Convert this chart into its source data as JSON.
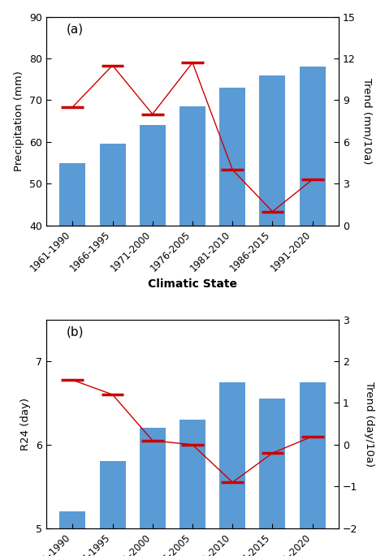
{
  "categories": [
    "1961-1990",
    "1966-1995",
    "1971-2000",
    "1976-2005",
    "1981-2010",
    "1986-2015",
    "1991-2020"
  ],
  "bar_color": "#5b9bd5",
  "line_color": "#cc0000",
  "panel_a": {
    "label": "(a)",
    "bar_values": [
      55.0,
      59.5,
      64.0,
      68.5,
      73.0,
      76.0,
      78.0
    ],
    "trend_values": [
      8.5,
      11.5,
      8.0,
      11.7,
      4.0,
      1.0,
      3.3
    ],
    "ylabel_left": "Precipitation (mm)",
    "ylabel_right": "Trend (mm/10a)",
    "ylim_left": [
      40,
      90
    ],
    "ylim_right": [
      0,
      15
    ],
    "yticks_left": [
      40,
      50,
      60,
      70,
      80,
      90
    ],
    "yticks_right": [
      0,
      3,
      6,
      9,
      12,
      15
    ]
  },
  "panel_b": {
    "label": "(b)",
    "bar_values": [
      5.2,
      5.8,
      6.2,
      6.3,
      6.75,
      6.55,
      6.75
    ],
    "trend_values": [
      1.55,
      1.2,
      0.1,
      0.0,
      -0.9,
      -0.2,
      0.2
    ],
    "ylabel_left": "R24 (day)",
    "ylabel_right": "Trend (day/10a)",
    "ylim_left": [
      5.0,
      7.5
    ],
    "ylim_right": [
      -2,
      3
    ],
    "yticks_left": [
      5,
      6,
      7
    ],
    "yticks_right": [
      -2,
      -1,
      0,
      1,
      2,
      3
    ]
  },
  "xlabel": "Climatic State",
  "figsize": [
    4.74,
    6.85
  ],
  "dpi": 100
}
